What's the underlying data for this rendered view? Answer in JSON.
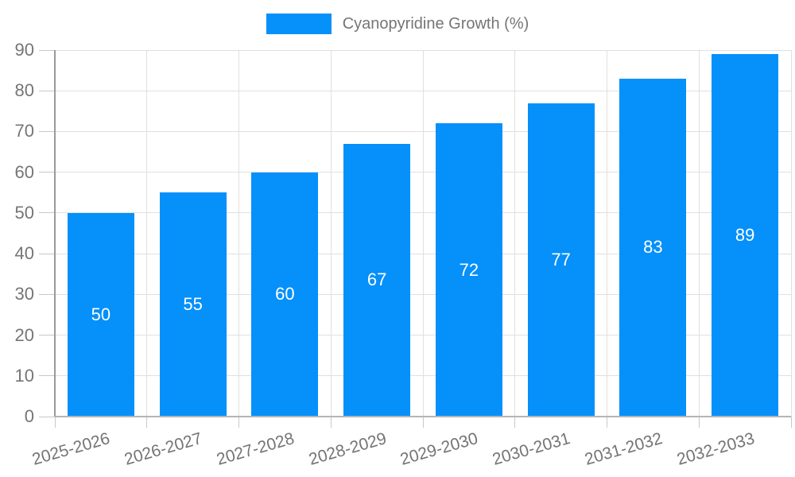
{
  "chart_data": {
    "type": "bar",
    "title": "",
    "series_name": "Cyanopyridine Growth (%)",
    "categories": [
      "2025-2026",
      "2026-2027",
      "2027-2028",
      "2028-2029",
      "2029-2030",
      "2030-2031",
      "2031-2032",
      "2032-2033"
    ],
    "values": [
      50,
      55,
      60,
      67,
      72,
      77,
      83,
      89
    ],
    "xlabel": "",
    "ylabel": "",
    "ylim": [
      0,
      90
    ],
    "yticks": [
      0,
      10,
      20,
      30,
      40,
      50,
      60,
      70,
      80,
      90
    ],
    "grid": true,
    "legend_position": "top",
    "x_label_rotation_deg": -16,
    "colors": {
      "bar": "#0590FA",
      "bar_value_label": "#FFFFFF",
      "axis_text": "#757575",
      "gridline": "#E0E0E0",
      "tick": "#C8C8C8",
      "y_axis_line": "#9A9A9A",
      "x_axis_line": "#B5B5B5",
      "background": "#FFFFFF"
    }
  }
}
